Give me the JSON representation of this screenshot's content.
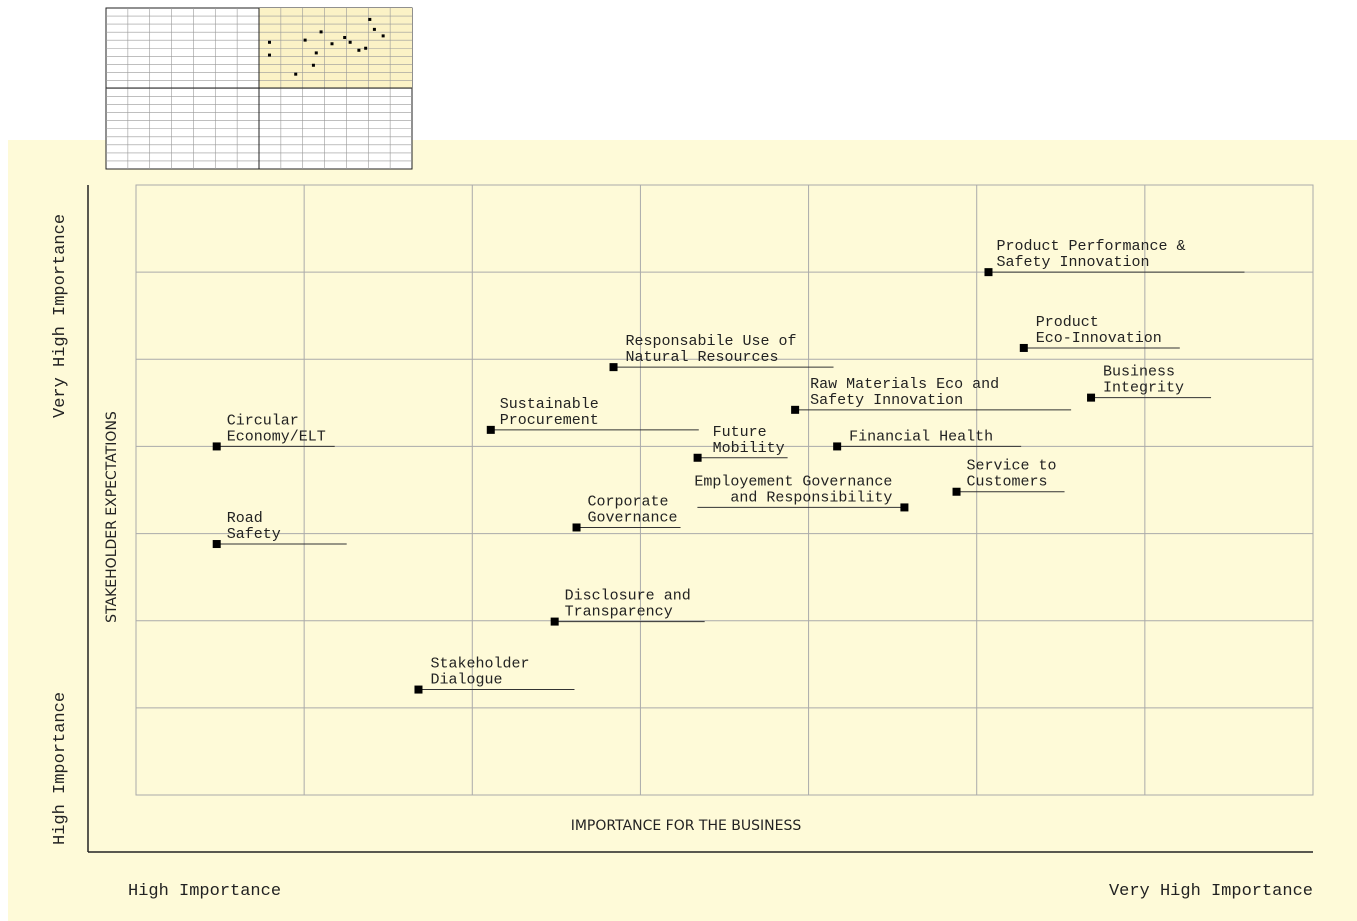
{
  "chart_data": {
    "type": "scatter",
    "x_axis_label": "IMPORTANCE FOR THE BUSINESS",
    "y_axis_label": "STAKEHOLDER EXPECTATIONS",
    "x_low_label": "High Importance",
    "x_high_label": "Very High Importance",
    "y_low_label": "High Importance",
    "y_high_label": "Very High Importance",
    "labels": [
      [
        "Product Performance &",
        "Safety Innovation"
      ],
      [
        "Product",
        "Eco-Innovation"
      ],
      [
        "Business",
        "Integrity"
      ],
      [
        "Responsabile Use of",
        "Natural Resources"
      ],
      [
        "Raw Materials Eco and",
        "Safety Innovation"
      ],
      [
        "Sustainable",
        "Procurement"
      ],
      [
        "Circular",
        "Economy/ELT"
      ],
      [
        "Future",
        "Mobility"
      ],
      [
        "Financial Health"
      ],
      [
        "Service to",
        "Customers"
      ],
      [
        "Employement Governance",
        "and Responsibility"
      ],
      [
        "Corporate",
        "Governance"
      ],
      [
        "Road",
        "Safety"
      ],
      [
        "Disclosure and",
        "Transparency"
      ],
      [
        "Stakeholder",
        "Dialogue"
      ]
    ],
    "x": [
      5.07,
      5.28,
      5.68,
      2.84,
      3.92,
      2.11,
      0.48,
      3.34,
      4.17,
      4.88,
      4.57,
      2.62,
      0.48,
      2.49,
      1.68
    ],
    "values": [
      6.0,
      5.13,
      4.56,
      4.91,
      4.42,
      4.19,
      4.0,
      3.87,
      4.0,
      3.48,
      3.3,
      3.07,
      2.88,
      1.99,
      1.21
    ],
    "color": "#000000",
    "xlim": [
      0,
      7
    ],
    "ylim": [
      0,
      7
    ],
    "xticks": [
      0,
      1,
      2,
      3,
      4,
      5,
      6,
      7
    ],
    "yticks": [
      0,
      1,
      2,
      3,
      4,
      5,
      6,
      7
    ],
    "grid": true
  }
}
